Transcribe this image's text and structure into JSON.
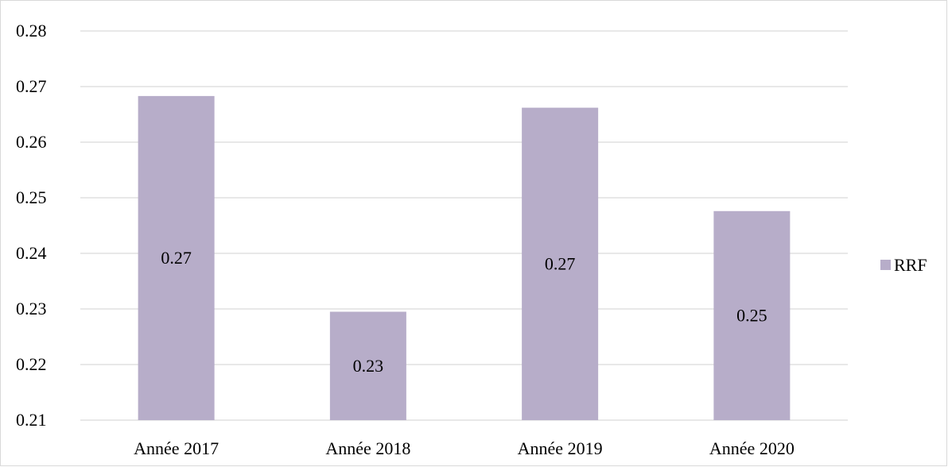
{
  "chart_data": {
    "type": "bar",
    "title": "",
    "xlabel": "",
    "ylabel": "",
    "categories": [
      "Année 2017",
      "Année 2018",
      "Année 2019",
      "Année 2020"
    ],
    "series": [
      {
        "name": "RRF",
        "values": [
          0.2683,
          0.2295,
          0.2662,
          0.2476
        ],
        "data_labels": [
          "0.27",
          "0.23",
          "0.27",
          "0.25"
        ],
        "color": "#b7adc9"
      }
    ],
    "ylim": [
      0.21,
      0.28
    ],
    "yticks": [
      "0.21",
      "0.22",
      "0.23",
      "0.24",
      "0.25",
      "0.26",
      "0.27",
      "0.28"
    ],
    "grid": true,
    "gridline_color": "#d9d9d9",
    "legend_position": "right"
  }
}
